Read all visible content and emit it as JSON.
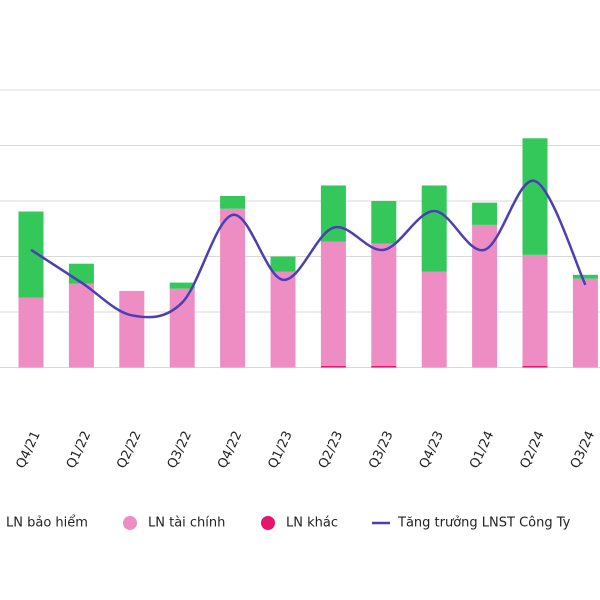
{
  "chart_data": {
    "type": "bar",
    "categories": [
      "Q4/21",
      "Q1/22",
      "Q2/22",
      "Q3/22",
      "Q4/22",
      "Q1/23",
      "Q2/23",
      "Q3/23",
      "Q4/23",
      "Q1/24",
      "Q2/24",
      "Q3/24"
    ],
    "series": [
      {
        "name": "LN khác",
        "color": "#e8146c",
        "values": [
          0,
          0,
          0,
          0,
          0,
          0,
          0.03,
          0.03,
          0,
          0,
          0.03,
          0
        ]
      },
      {
        "name": "LN tài chính",
        "color": "#ee8cc4",
        "values": [
          1.26,
          1.51,
          1.38,
          1.42,
          2.86,
          1.73,
          2.24,
          2.2,
          1.73,
          2.57,
          2.0,
          1.6
        ]
      },
      {
        "name": "LN bảo hiểm",
        "color": "#34c759",
        "values": [
          1.55,
          0.36,
          0,
          0.11,
          0.23,
          0.27,
          1.01,
          0.77,
          1.55,
          0.4,
          2.1,
          0.07
        ]
      },
      {
        "name": "Tăng trưởng LNST Công Ty",
        "color": "#4a3fb5",
        "type": "line",
        "values": [
          2.12,
          1.53,
          0.94,
          1.17,
          2.75,
          1.58,
          2.52,
          2.12,
          2.82,
          2.12,
          3.36,
          1.49
        ]
      }
    ],
    "legend_order": [
      2,
      1,
      0,
      3
    ],
    "ylim": [
      -1,
      5
    ],
    "yticks": [
      0,
      1,
      2,
      3,
      4,
      5
    ],
    "grid": true
  }
}
